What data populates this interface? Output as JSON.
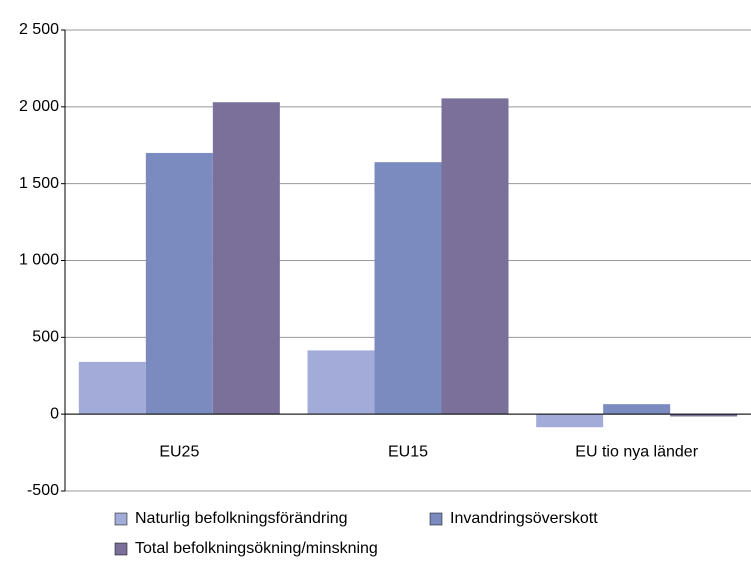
{
  "chart_data": {
    "type": "bar",
    "categories": [
      "EU25",
      "EU15",
      "EU tio nya länder"
    ],
    "series": [
      {
        "name": "Naturlig befolkningsförändring",
        "color": "#a3acd8",
        "values": [
          340,
          415,
          -85
        ]
      },
      {
        "name": "Invandringsöverskott",
        "color": "#7b8bc0",
        "values": [
          1700,
          1640,
          65
        ]
      },
      {
        "name": "Total befolkningsökning/minskning",
        "color": "#7a7099",
        "values": [
          2030,
          2055,
          -15
        ]
      }
    ],
    "ylim": [
      -500,
      2500
    ],
    "yticks": [
      -500,
      0,
      500,
      {
        "value": 1000,
        "label": "1 000"
      },
      {
        "value": 1500,
        "label": "1 500"
      },
      {
        "value": 2000,
        "label": "2 000"
      },
      {
        "value": 2500,
        "label": "2 500"
      }
    ],
    "grid": true
  }
}
